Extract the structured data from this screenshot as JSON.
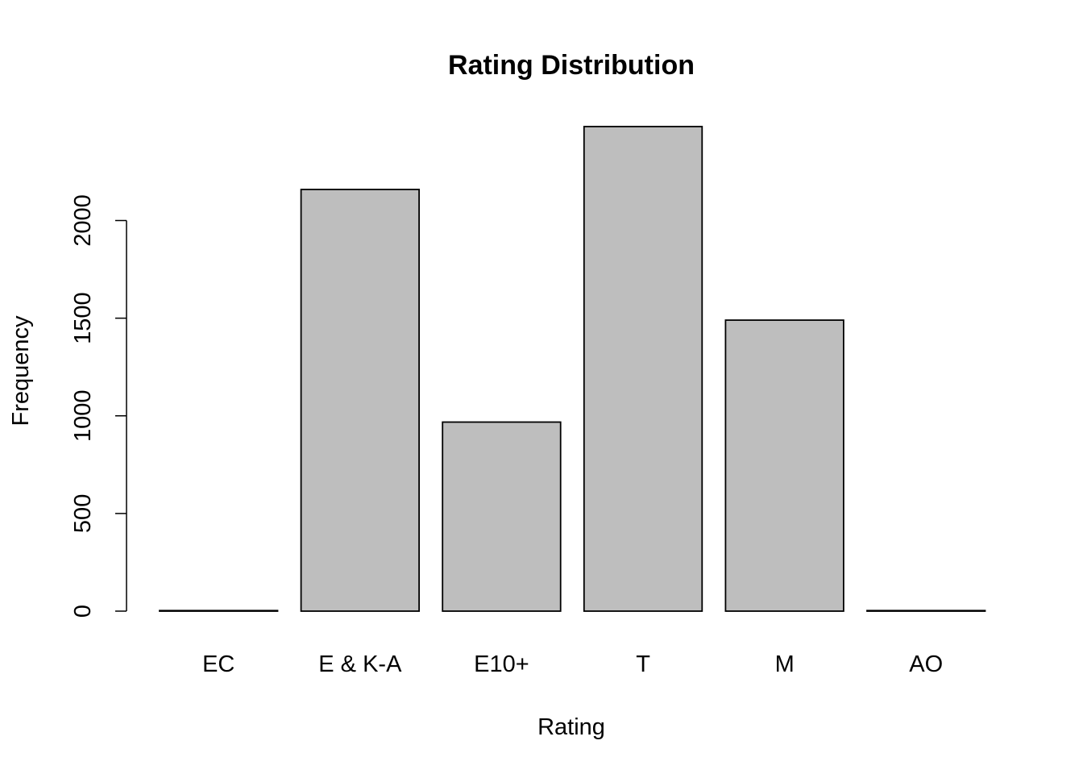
{
  "chart_data": {
    "type": "bar",
    "title": "Rating Distribution",
    "xlabel": "Rating",
    "ylabel": "Frequency",
    "categories": [
      "EC",
      "E & K-A",
      "E10+",
      "T",
      "M",
      "AO"
    ],
    "values": [
      3,
      2159,
      968,
      2481,
      1490,
      3
    ],
    "yticks": [
      0,
      500,
      1000,
      1500,
      2000
    ],
    "ylim": [
      0,
      2481
    ],
    "grid": false,
    "legend": "none",
    "bar_color": "#bebebe",
    "border_color": "#000000"
  }
}
